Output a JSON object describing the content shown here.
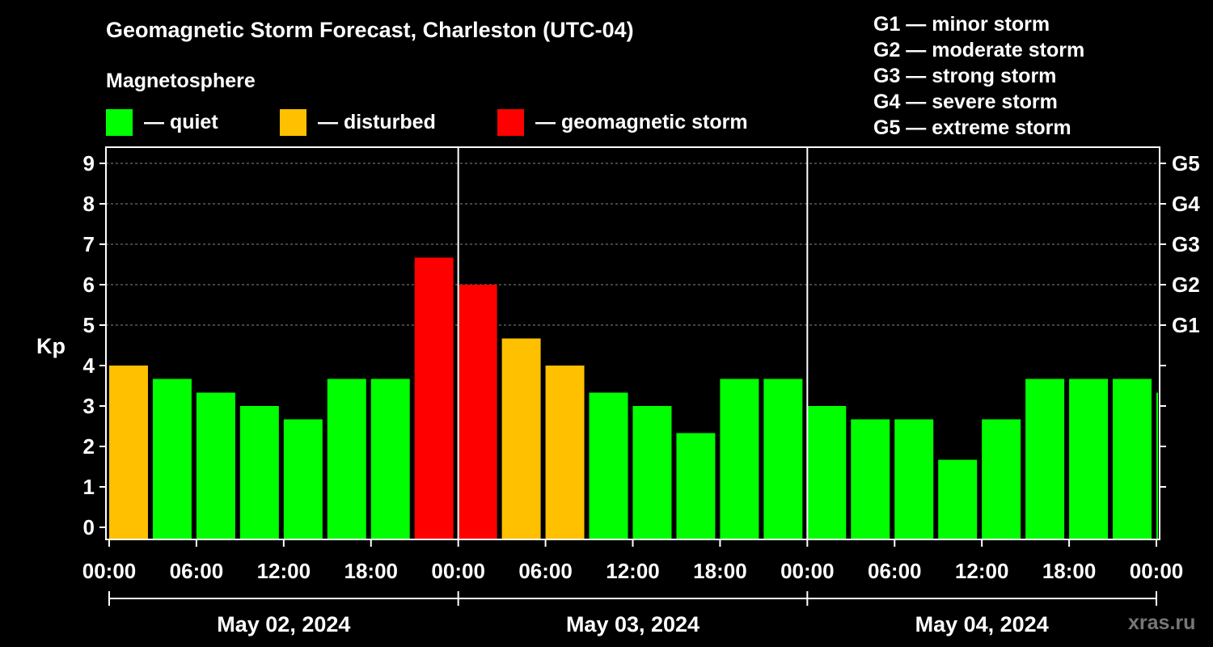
{
  "header": {
    "title": "Geomagnetic Storm Forecast, Charleston (UTC-04)",
    "section_label": "Magnetosphere"
  },
  "legend": [
    {
      "label": "— quiet",
      "color": "#00ff00"
    },
    {
      "label": "— disturbed",
      "color": "#ffc000"
    },
    {
      "label": "— geomagnetic storm",
      "color": "#ff0000"
    }
  ],
  "storm_scale": [
    "G1 — minor storm",
    "G2 — moderate storm",
    "G3 — strong storm",
    "G4 — severe storm",
    "G5 — extreme storm"
  ],
  "watermark": "xras.ru",
  "chart_data": {
    "type": "bar",
    "title": "Geomagnetic Storm Forecast, Charleston (UTC-04)",
    "ylabel": "Kp",
    "ylim": [
      0,
      9
    ],
    "y_ticks": [
      "0",
      "1",
      "2",
      "3",
      "4",
      "5",
      "6",
      "7",
      "8",
      "9"
    ],
    "right_axis_labels": [
      {
        "kp": 5,
        "label": "G1"
      },
      {
        "kp": 6,
        "label": "G2"
      },
      {
        "kp": 7,
        "label": "G3"
      },
      {
        "kp": 8,
        "label": "G4"
      },
      {
        "kp": 9,
        "label": "G5"
      }
    ],
    "x_ticks": [
      "00:00",
      "06:00",
      "12:00",
      "18:00",
      "00:00",
      "06:00",
      "12:00",
      "18:00",
      "00:00",
      "06:00",
      "12:00",
      "18:00",
      "00:00"
    ],
    "x_range_hours": [
      0,
      72
    ],
    "day_labels": [
      "May 02, 2024",
      "May 03, 2024",
      "May 04, 2024"
    ],
    "bar_width_hours": 3,
    "grid": "horizontal dashed from Kp 5 to 9",
    "values": [
      4.0,
      3.67,
      3.33,
      3.0,
      2.67,
      3.67,
      3.67,
      6.67,
      6.0,
      4.67,
      4.0,
      3.33,
      3.0,
      2.33,
      3.67,
      3.67,
      3.0,
      2.67,
      2.67,
      1.67,
      2.67,
      3.67,
      3.67,
      3.67,
      3.33
    ],
    "levels": [
      "disturbed",
      "quiet",
      "quiet",
      "quiet",
      "quiet",
      "quiet",
      "quiet",
      "storm",
      "storm",
      "disturbed",
      "disturbed",
      "quiet",
      "quiet",
      "quiet",
      "quiet",
      "quiet",
      "quiet",
      "quiet",
      "quiet",
      "quiet",
      "quiet",
      "quiet",
      "quiet",
      "quiet",
      "quiet"
    ],
    "level_colors": {
      "quiet": "#00ff00",
      "disturbed": "#ffc000",
      "storm": "#ff0000"
    }
  }
}
